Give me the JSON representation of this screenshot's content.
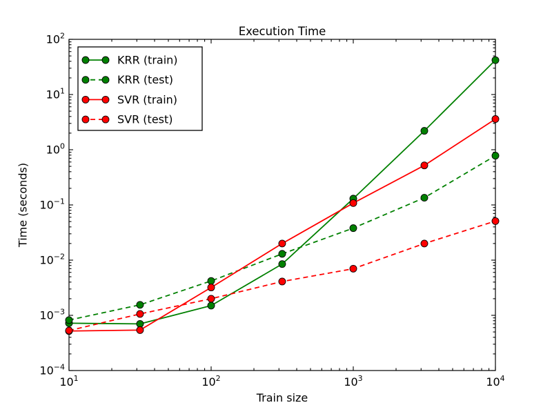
{
  "figure": {
    "background_color": "#ffffff",
    "text_color": "#000000",
    "spine_color": "#000000"
  },
  "chart_data": {
    "type": "line",
    "title": "Execution Time",
    "xlabel": "Train size",
    "ylabel": "Time (seconds)",
    "xscale": "log",
    "yscale": "log",
    "xlim": [
      10,
      10000
    ],
    "ylim": [
      0.0001,
      100
    ],
    "x_tick_exponents": [
      1,
      2,
      3,
      4
    ],
    "y_tick_exponents": [
      2,
      1,
      0,
      -1,
      -2,
      -3,
      -4
    ],
    "grid": false,
    "x": [
      10,
      31.6,
      100,
      316,
      1000,
      3162,
      10000
    ],
    "series": [
      {
        "name": "KRR (train)",
        "color": "#008000",
        "style": "solid",
        "marker": "circle",
        "values": [
          0.00072,
          0.0007,
          0.0015,
          0.0085,
          0.13,
          2.2,
          42
        ]
      },
      {
        "name": "KRR (test)",
        "color": "#008000",
        "style": "dashed",
        "marker": "circle",
        "values": [
          0.00082,
          0.00155,
          0.0042,
          0.013,
          0.038,
          0.135,
          0.78
        ]
      },
      {
        "name": "SVR (train)",
        "color": "#ff0000",
        "style": "solid",
        "marker": "circle",
        "values": [
          0.00052,
          0.00054,
          0.0032,
          0.02,
          0.108,
          0.52,
          3.6
        ]
      },
      {
        "name": "SVR (test)",
        "color": "#ff0000",
        "style": "dashed",
        "marker": "circle",
        "values": [
          0.00053,
          0.00106,
          0.002,
          0.0041,
          0.007,
          0.02,
          0.051
        ]
      }
    ],
    "legend": {
      "position": "upper left",
      "entries": [
        "KRR (train)",
        "KRR (test)",
        "SVR (train)",
        "SVR (test)"
      ]
    }
  }
}
